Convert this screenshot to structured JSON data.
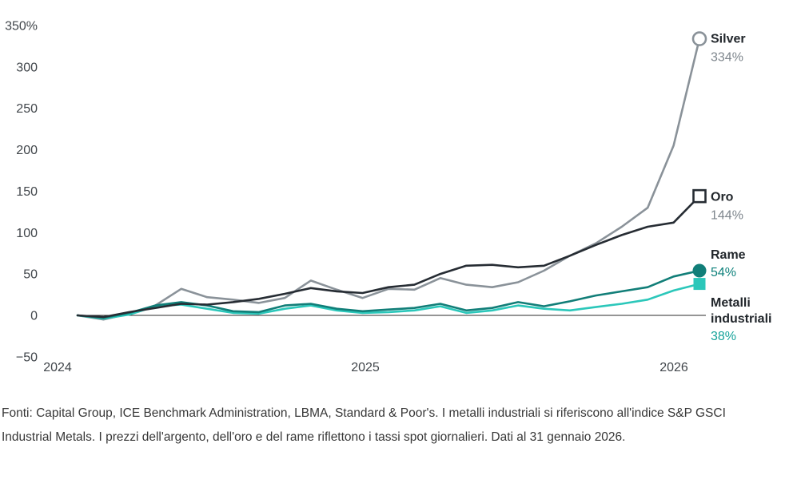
{
  "chart_data": {
    "type": "line",
    "title": "",
    "x_axis": {
      "tick_labels": [
        "2024",
        "2025",
        "2026"
      ],
      "note": "monthly data points, Jan 2024 through 31 Jan 2026"
    },
    "y_axis": {
      "ticks": [
        {
          "label": "350%",
          "value": 350
        },
        {
          "label": "300",
          "value": 300
        },
        {
          "label": "250",
          "value": 250
        },
        {
          "label": "200",
          "value": 200
        },
        {
          "label": "150",
          "value": 150
        },
        {
          "label": "100",
          "value": 100
        },
        {
          "label": "50",
          "value": 50
        },
        {
          "label": "0",
          "value": 0
        },
        {
          "label": "−50",
          "value": -50
        }
      ],
      "ylim": [
        -50,
        350
      ]
    },
    "grid": "none (zero baseline only)",
    "legend_position": "right-end-labels",
    "series": [
      {
        "key": "silver",
        "name": "Silver",
        "label_lines": [
          "Silver"
        ],
        "end_value": 334,
        "end_value_label": "334%",
        "color": "#8a9299",
        "value_label_color": "#7e868d",
        "marker": "circle-open",
        "values": [
          0,
          -5,
          2,
          12,
          32,
          22,
          19,
          15,
          21,
          42,
          31,
          21,
          32,
          31,
          45,
          37,
          34,
          40,
          54,
          72,
          87,
          107,
          130,
          205,
          334
        ]
      },
      {
        "key": "oro",
        "name": "Oro",
        "label_lines": [
          "Oro"
        ],
        "end_value": 144,
        "end_value_label": "144%",
        "color": "#262c33",
        "value_label_color": "#7e868d",
        "marker": "square-open",
        "values": [
          0,
          -2,
          4,
          9,
          14,
          13,
          16,
          20,
          26,
          33,
          29,
          27,
          34,
          37,
          50,
          60,
          61,
          58,
          60,
          72,
          85,
          97,
          107,
          112,
          144
        ]
      },
      {
        "key": "rame",
        "name": "Rame",
        "label_lines": [
          "Rame"
        ],
        "end_value": 54,
        "end_value_label": "54%",
        "color": "#117e78",
        "value_label_color": "#0d817b",
        "marker": "circle-filled",
        "values": [
          0,
          -3,
          3,
          12,
          16,
          12,
          5,
          4,
          12,
          14,
          8,
          5,
          7,
          9,
          14,
          6,
          9,
          16,
          11,
          17,
          24,
          29,
          34,
          47,
          54
        ]
      },
      {
        "key": "metalli-industriali",
        "name": "Metalli industriali",
        "label_lines": [
          "Metalli",
          "industriali"
        ],
        "end_value": 38,
        "end_value_label": "38%",
        "color": "#2bc7ba",
        "value_label_color": "#16a39a",
        "marker": "square-filled",
        "values": [
          0,
          -4,
          1,
          11,
          13,
          8,
          3,
          2,
          8,
          12,
          6,
          3,
          4,
          6,
          11,
          3,
          6,
          12,
          8,
          6,
          10,
          14,
          19,
          30,
          38
        ]
      }
    ]
  },
  "footnote": {
    "text": "Fonti: Capital Group, ICE Benchmark Administration, LBMA, Standard & Poor's. I metalli industriali si riferiscono all'indice S&P GSCI Industrial Metals. I prezzi dell'argento, dell'oro e del rame riflettono i tassi spot giornalieri. Dati al 31 gennaio 2026."
  }
}
